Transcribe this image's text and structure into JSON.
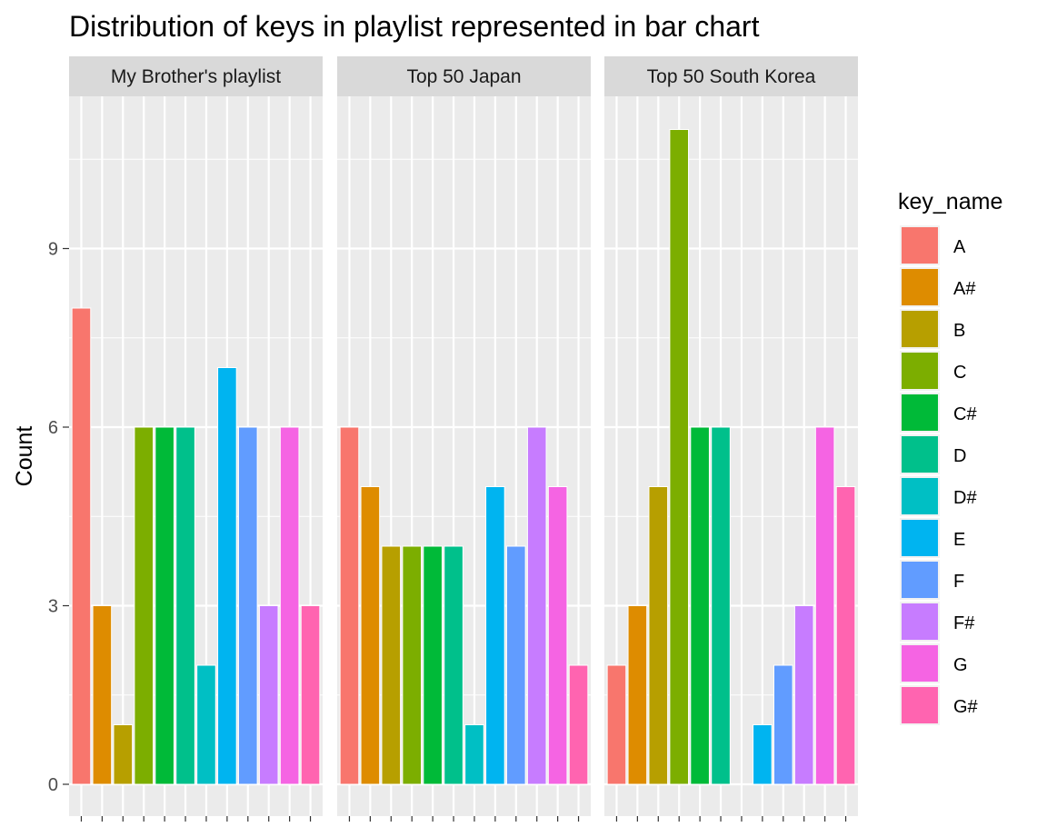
{
  "chart_data": {
    "type": "bar",
    "title": "Distribution of keys in playlist represented in bar chart",
    "ylabel": "Count",
    "xlabel": "",
    "ylim": [
      0,
      11.55
    ],
    "y_ticks": [
      0,
      3,
      6,
      9
    ],
    "grid": true,
    "legend_position": "right",
    "legend": {
      "title": "key_name",
      "entries": [
        {
          "key": "A",
          "color": "#F8766D"
        },
        {
          "key": "A#",
          "color": "#DE8C00"
        },
        {
          "key": "B",
          "color": "#B79F00"
        },
        {
          "key": "C",
          "color": "#7CAE00"
        },
        {
          "key": "C#",
          "color": "#00BA38"
        },
        {
          "key": "D",
          "color": "#00C08B"
        },
        {
          "key": "D#",
          "color": "#00BFC4"
        },
        {
          "key": "E",
          "color": "#00B4F0"
        },
        {
          "key": "F",
          "color": "#619CFF"
        },
        {
          "key": "F#",
          "color": "#C77CFF"
        },
        {
          "key": "G",
          "color": "#F564E3"
        },
        {
          "key": "G#",
          "color": "#FF64B0"
        }
      ]
    },
    "categories": [
      "A",
      "A#",
      "B",
      "C",
      "C#",
      "D",
      "D#",
      "E",
      "F",
      "F#",
      "G",
      "G#"
    ],
    "panels": [
      {
        "name": "My Brother's playlist",
        "values": [
          8,
          3,
          1,
          6,
          6,
          6,
          2,
          7,
          6,
          3,
          6,
          3
        ]
      },
      {
        "name": "Top 50 Japan",
        "values": [
          6,
          5,
          4,
          4,
          4,
          4,
          1,
          5,
          4,
          6,
          5,
          2
        ]
      },
      {
        "name": "Top 50 South Korea",
        "values": [
          2,
          3,
          5,
          11,
          6,
          6,
          0,
          1,
          2,
          3,
          6,
          5
        ]
      }
    ]
  }
}
